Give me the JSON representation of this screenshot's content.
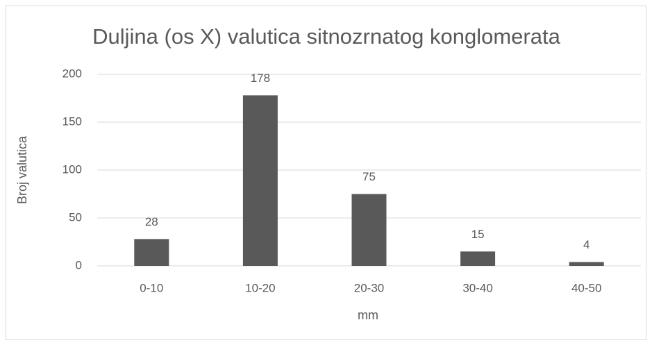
{
  "chart_data": {
    "type": "bar",
    "title": "Duljina (os X) valutica sitnozrnatog konglomerata",
    "x_label": "mm",
    "y_label": "Broj valutica",
    "categories": [
      "0-10",
      "10-20",
      "20-30",
      "30-40",
      "40-50"
    ],
    "values": [
      28,
      178,
      75,
      15,
      4
    ],
    "color": "#595959",
    "ylim": [
      0,
      200
    ],
    "yticks": [
      0,
      50,
      100,
      150,
      200
    ],
    "grid": true,
    "data_labels": true
  }
}
